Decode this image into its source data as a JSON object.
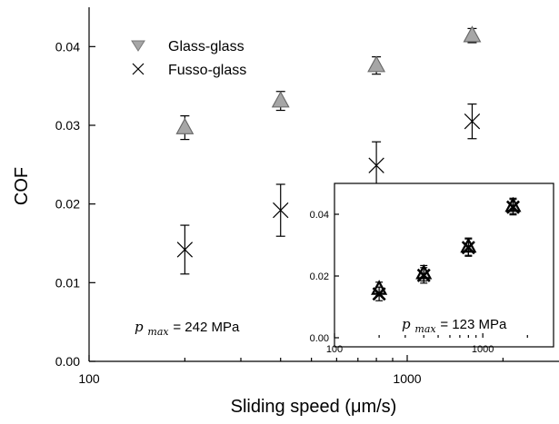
{
  "chart_data": [
    {
      "type": "scatter",
      "xscale": "log",
      "xlabel": "Sliding speed (μm/s)",
      "ylabel": "COF",
      "xlim": [
        100,
        3000
      ],
      "ylim": [
        0.0,
        0.045
      ],
      "xticks": [
        100,
        1000
      ],
      "xtick_labels": [
        "100",
        "1000"
      ],
      "yticks": [
        0.0,
        0.01,
        0.02,
        0.03,
        0.04
      ],
      "ytick_labels": [
        "0.00",
        "0.01",
        "0.02",
        "0.03",
        "0.04"
      ],
      "legend_position": "top-left",
      "series": [
        {
          "name": "Glass-glass",
          "marker": "triangle",
          "color": "#a6a6a6",
          "points": [
            {
              "x": 200,
              "y": 0.0297,
              "err": 0.0015
            },
            {
              "x": 400,
              "y": 0.0331,
              "err": 0.0012
            },
            {
              "x": 800,
              "y": 0.0376,
              "err": 0.0011
            },
            {
              "x": 1600,
              "y": 0.0414,
              "err": 0.0009
            }
          ]
        },
        {
          "name": "Fusso-glass",
          "marker": "x",
          "color": "#000000",
          "points": [
            {
              "x": 200,
              "y": 0.0142,
              "err": 0.0031
            },
            {
              "x": 400,
              "y": 0.0192,
              "err": 0.0033
            },
            {
              "x": 800,
              "y": 0.0249,
              "err": 0.003
            },
            {
              "x": 1600,
              "y": 0.0305,
              "err": 0.0022
            }
          ]
        }
      ],
      "annotation": {
        "symbol": "p",
        "subscript": "max",
        "text": "= 242 MPa"
      }
    },
    {
      "type": "scatter",
      "xscale": "log",
      "xlim": [
        100,
        3000
      ],
      "ylim": [
        0.0,
        0.05
      ],
      "xticks": [
        100,
        1000
      ],
      "xtick_labels": [
        "100",
        "1000"
      ],
      "yticks": [
        0.0,
        0.02,
        0.04
      ],
      "ytick_labels": [
        "0.00",
        "0.02",
        "0.04"
      ],
      "series": [
        {
          "name": "Glass-glass",
          "marker": "triangle",
          "color": "#a6a6a6",
          "points": [
            {
              "x": 200,
              "y": 0.0158,
              "err": 0.0022
            },
            {
              "x": 400,
              "y": 0.0209,
              "err": 0.0025
            },
            {
              "x": 800,
              "y": 0.0295,
              "err": 0.0028
            },
            {
              "x": 1600,
              "y": 0.0427,
              "err": 0.0025
            }
          ]
        },
        {
          "name": "Fusso-glass",
          "marker": "x",
          "color": "#000000",
          "points": [
            {
              "x": 200,
              "y": 0.0142,
              "err": 0.0022
            },
            {
              "x": 400,
              "y": 0.0202,
              "err": 0.0025
            },
            {
              "x": 800,
              "y": 0.0292,
              "err": 0.0028
            },
            {
              "x": 1600,
              "y": 0.0423,
              "err": 0.0025
            }
          ]
        }
      ],
      "annotation": {
        "symbol": "p",
        "subscript": "max",
        "text": "= 123 MPa"
      }
    }
  ]
}
